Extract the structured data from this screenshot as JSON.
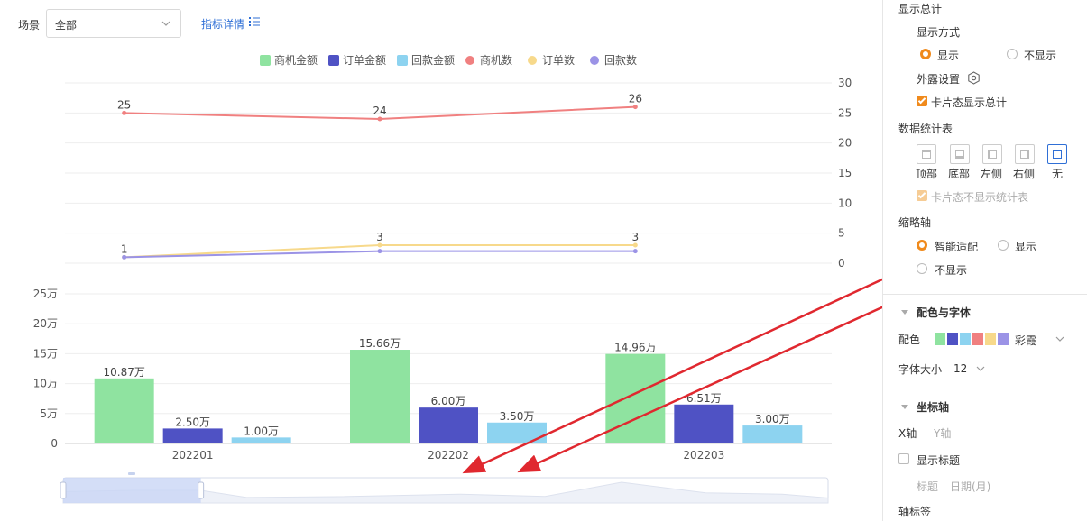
{
  "scene": {
    "label": "场景",
    "value": "全部",
    "detail_link": "指标详情"
  },
  "chart_data": {
    "type": "bar",
    "categories": [
      "202201",
      "202202",
      "202203"
    ],
    "legend": [
      {
        "name": "商机金额",
        "color": "#8fe3a0",
        "kind": "bar"
      },
      {
        "name": "订单金额",
        "color": "#4f52c4",
        "kind": "bar"
      },
      {
        "name": "回款金额",
        "color": "#8dd3f0",
        "kind": "bar"
      },
      {
        "name": "商机数",
        "color": "#f08080",
        "kind": "line"
      },
      {
        "name": "订单数",
        "color": "#f7d98b",
        "kind": "line"
      },
      {
        "name": "回款数",
        "color": "#9b93e6",
        "kind": "line"
      }
    ],
    "bar_series": [
      {
        "name": "商机金额",
        "values": [
          10.87,
          15.66,
          14.96
        ],
        "labels": [
          "10.87万",
          "15.66万",
          "14.96万"
        ]
      },
      {
        "name": "订单金额",
        "values": [
          2.5,
          6.0,
          6.51
        ],
        "labels": [
          "2.50万",
          "6.00万",
          "6.51万"
        ]
      },
      {
        "name": "回款金额",
        "values": [
          1.0,
          3.5,
          3.0
        ],
        "labels": [
          "1.00万",
          "3.50万",
          "3.00万"
        ]
      }
    ],
    "line_series": [
      {
        "name": "商机数",
        "values": [
          25,
          24,
          26
        ],
        "labels": [
          "25",
          "24",
          "26"
        ]
      },
      {
        "name": "订单数",
        "values": [
          1,
          3,
          3
        ],
        "labels": [
          "1",
          "3",
          "3"
        ]
      },
      {
        "name": "回款数",
        "values": [
          1,
          2,
          2
        ],
        "labels": [
          "",
          "",
          ""
        ]
      }
    ],
    "bar_axis": {
      "ticks": [
        "0",
        "5万",
        "10万",
        "15万",
        "20万",
        "25万"
      ],
      "max": 25
    },
    "line_axis": {
      "ticks": [
        "0",
        "5",
        "10",
        "15",
        "20",
        "25",
        "30"
      ],
      "max": 30
    },
    "grid": true,
    "legend_position": "top-center",
    "datazoom": {
      "start": 0,
      "end": 0.18
    }
  },
  "panel": {
    "show_total": "显示总计",
    "display_mode": "显示方式",
    "show": "显示",
    "hide": "不显示",
    "exposure": "外露设置",
    "card_total": "卡片态显示总计",
    "stats_table": "数据统计表",
    "positions": [
      "顶部",
      "底部",
      "左侧",
      "右侧",
      "无"
    ],
    "card_no_stats": "卡片态不显示统计表",
    "thumb_axis": "缩略轴",
    "smart_fit": "智能适配",
    "thumb_show": "显示",
    "thumb_hide": "不显示",
    "color_font": "配色与字体",
    "color_label": "配色",
    "palette_name": "彩霞",
    "palette": [
      "#8fe3a0",
      "#4f52c4",
      "#8dd3f0",
      "#f08080",
      "#f7d98b",
      "#9b93e6"
    ],
    "font_size_label": "字体大小",
    "font_size_value": "12",
    "axis_section": "坐标轴",
    "x_axis": "X轴",
    "y_axis": "Y轴",
    "show_title": "显示标题",
    "title_label": "标题",
    "title_value": "日期(月)",
    "axis_label": "轴标签"
  },
  "annotation_color": "#e0282f"
}
